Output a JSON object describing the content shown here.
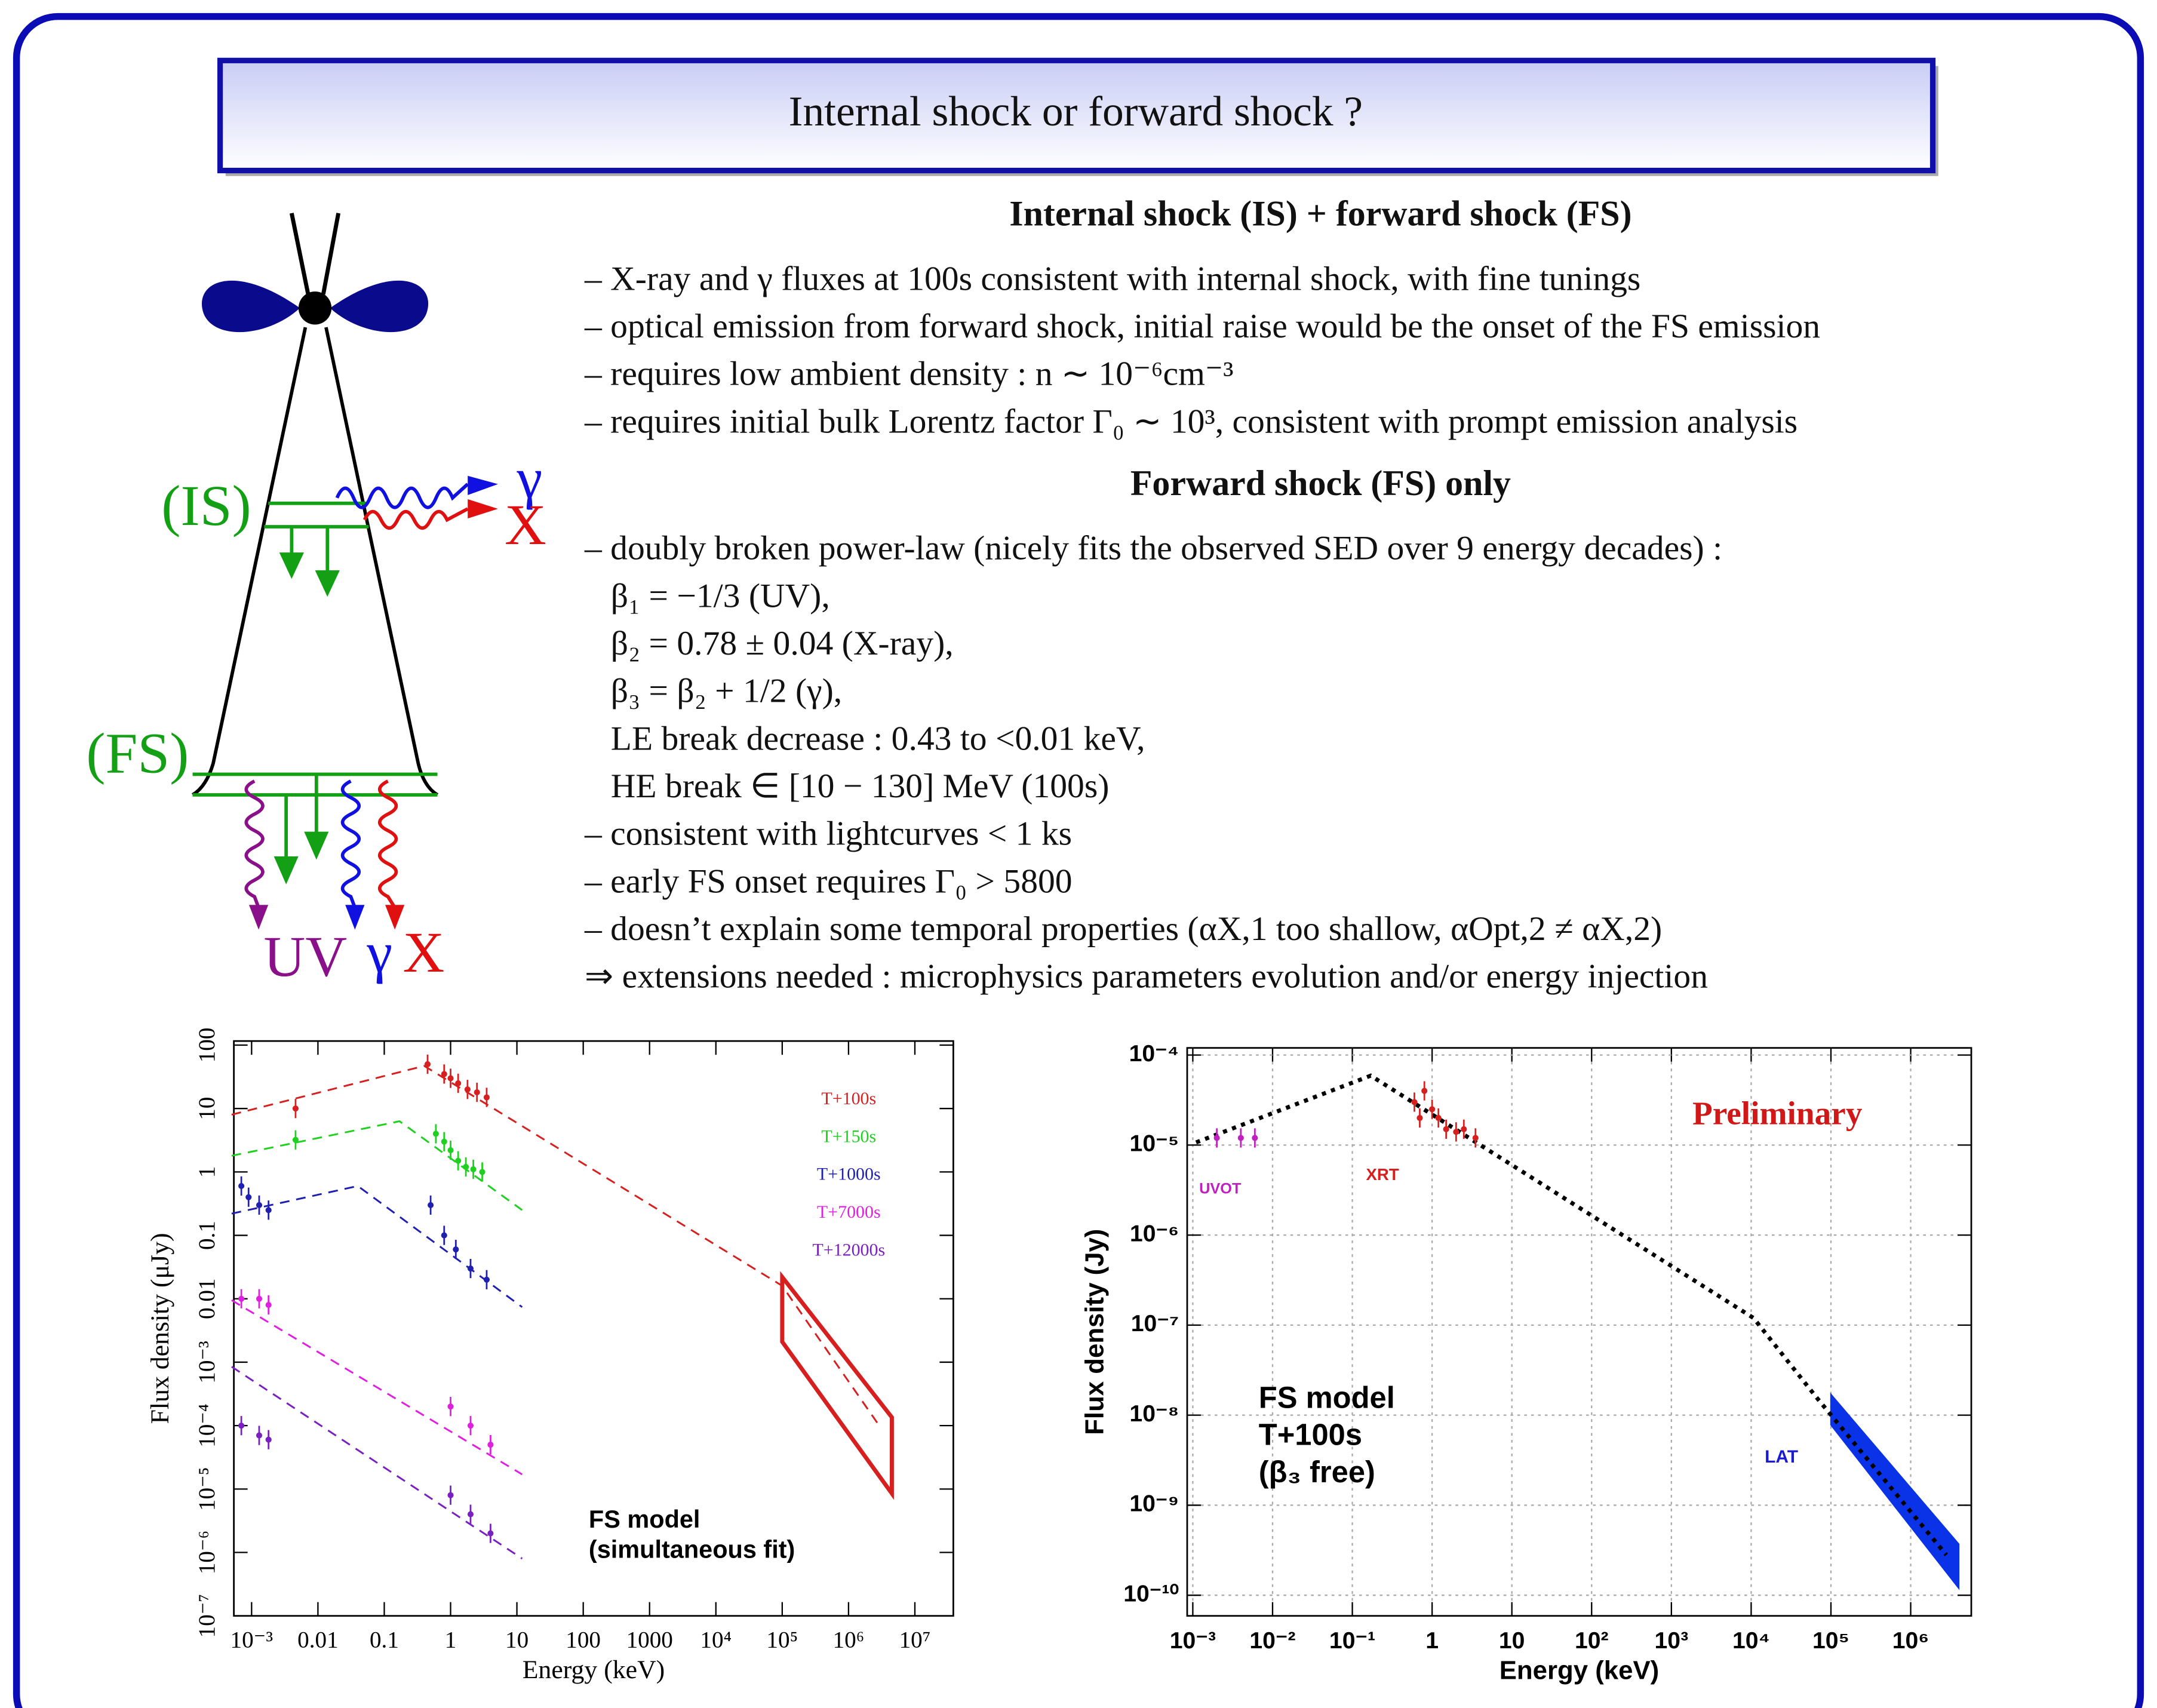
{
  "header": {
    "title": "Internal shock or forward shock ?"
  },
  "diagram": {
    "labels": [
      {
        "text": "(IS)",
        "color": "#14a014"
      },
      {
        "text": "γ",
        "color": "#1010e0"
      },
      {
        "text": "X",
        "color": "#e01010"
      },
      {
        "text": "(FS)",
        "color": "#14a014"
      },
      {
        "text": "UV",
        "color": "#8a108a"
      },
      {
        "text": "γ",
        "color": "#1010e0"
      },
      {
        "text": "X",
        "color": "#e01010"
      }
    ]
  },
  "sections": [
    {
      "heading": "Internal shock (IS) + forward shock (FS)",
      "items": [
        "– X-ray and γ fluxes at 100s consistent with internal shock, with fine tunings",
        "– optical emission from forward shock, initial raise would be the onset of the FS emission",
        "– requires low ambient density : n ∼ 10⁻⁶cm⁻³",
        "– requires initial bulk Lorentz factor Γ₀ ∼ 10³, consistent with prompt emission analysis"
      ]
    },
    {
      "heading": "Forward shock (FS) only",
      "items": [
        "– doubly broken power-law (nicely fits the observed SED over 9 energy decades) :",
        "β₁ = −1/3 (UV),",
        "β₂ = 0.78 ± 0.04 (X-ray),",
        "β₃ = β₂ + 1/2 (γ),",
        "LE break decrease : 0.43 to <0.01 keV,",
        "HE break ∈ [10 − 130] MeV (100s)",
        "– consistent with lightcurves < 1 ks",
        "– early FS onset requires Γ₀ > 5800",
        "– doesn’t explain some temporal properties (αX,1 too shallow, αOpt,2 ≠ αX,2)",
        "⇒ extensions needed : microphysics parameters evolution and/or energy injection"
      ]
    }
  ],
  "chart_data": [
    {
      "type": "line",
      "xlabel": "Energy (keV)",
      "ylabel": "Flux density (μJy)",
      "xscale": "log",
      "yscale": "log",
      "grid": false,
      "xlim": [
        0.00054,
        38000000
      ],
      "ylim": [
        1e-07,
        116
      ],
      "xticks": [
        {
          "value": 0.001,
          "label": "10⁻³"
        },
        0.01,
        0.1,
        1,
        10,
        100,
        1000,
        {
          "value": 10000,
          "label": "10⁴"
        },
        {
          "value": 100000,
          "label": "10⁵"
        },
        {
          "value": 1000000,
          "label": "10⁶"
        },
        {
          "value": 10000000,
          "label": "10⁷"
        }
      ],
      "yticks": [
        {
          "value": 1e-07,
          "label": "10⁻⁷"
        },
        {
          "value": 1e-06,
          "label": "10⁻⁶"
        },
        {
          "value": 1e-05,
          "label": "10⁻⁵"
        },
        {
          "value": 0.0001,
          "label": "10⁻⁴"
        },
        {
          "value": 0.001,
          "label": "10⁻³"
        },
        0.01,
        0.1,
        1,
        10,
        100
      ],
      "series": [
        {
          "name": "T+100s",
          "color": "#d62020",
          "dash": "dashed",
          "x": [
            0.0005,
            0.4,
            100000,
            2900000
          ],
          "values": [
            8,
            47,
            0.016,
            0.0001
          ],
          "points": {
            "x": [
              0.0046,
              0.45,
              0.8,
              1.0,
              1.3,
              1.8,
              2.5,
              3.5
            ],
            "values": [
              10,
              50,
              35,
              30,
              25,
              20,
              18,
              15
            ]
          }
        },
        {
          "name": "T+150s",
          "color": "#20d020",
          "dash": "dashed",
          "x": [
            0.0005,
            0.17,
            12
          ],
          "values": [
            1.8,
            6.3,
            0.25
          ],
          "points": {
            "x": [
              0.0046,
              0.6,
              0.8,
              1.0,
              1.3,
              1.7,
              2.2,
              3.0
            ],
            "values": [
              3.2,
              4,
              3,
              2.2,
              1.5,
              1.2,
              1.1,
              1.0
            ]
          }
        },
        {
          "name": "T+1000s",
          "color": "#2020b0",
          "dash": "dashed",
          "x": [
            0.0005,
            0.04,
            12
          ],
          "values": [
            0.22,
            0.6,
            0.0074
          ],
          "points": {
            "x": [
              0.0007,
              0.0009,
              0.0013,
              0.0018,
              0.5,
              0.8,
              1.2,
              2,
              3.5
            ],
            "values": [
              0.6,
              0.4,
              0.3,
              0.25,
              0.3,
              0.1,
              0.06,
              0.03,
              0.02
            ]
          }
        },
        {
          "name": "T+7000s",
          "color": "#e020e0",
          "dash": "dashed",
          "x": [
            0.0005,
            12
          ],
          "values": [
            0.0095,
            1.7e-05
          ],
          "points": {
            "x": [
              0.0007,
              0.0013,
              0.0018,
              1.0,
              2.0,
              4.0
            ],
            "values": [
              0.01,
              0.01,
              0.008,
              0.0002,
              0.0001,
              5e-05
            ]
          }
        },
        {
          "name": "T+12000s",
          "color": "#7a20c0",
          "dash": "dashed",
          "x": [
            0.0005,
            12
          ],
          "values": [
            0.00085,
            8e-07
          ],
          "points": {
            "x": [
              0.0007,
              0.0013,
              0.0018,
              1.0,
              2.0,
              4.0
            ],
            "values": [
              0.0001,
              7e-05,
              6e-05,
              8e-06,
              4e-06,
              2e-06
            ]
          }
        }
      ],
      "band": {
        "color": "#d62020",
        "style": "outline",
        "x": [
          100000,
          4500000
        ],
        "upper": [
          0.022,
          0.000135
        ],
        "lower": [
          0.0021,
          8.5e-06
        ]
      },
      "annotations": [
        {
          "text": "FS model",
          "color": "#000000"
        },
        {
          "text": "(simultaneous fit)",
          "color": "#000000"
        }
      ]
    },
    {
      "type": "line",
      "xlabel": "Energy (keV)",
      "ylabel": "Flux density (Jy)",
      "xscale": "log",
      "yscale": "log",
      "grid": true,
      "xlim": [
        0.00085,
        5750000
      ],
      "ylim": [
        5.9e-11,
        0.00012
      ],
      "xticks": [
        {
          "value": 0.001,
          "label": "10⁻³"
        },
        {
          "value": 0.01,
          "label": "10⁻²"
        },
        {
          "value": 0.1,
          "label": "10⁻¹"
        },
        1,
        10,
        {
          "value": 100,
          "label": "10²"
        },
        {
          "value": 1000,
          "label": "10³"
        },
        {
          "value": 10000,
          "label": "10⁴"
        },
        {
          "value": 100000,
          "label": "10⁵"
        },
        {
          "value": 1000000,
          "label": "10⁶"
        }
      ],
      "yticks": [
        {
          "value": 1e-10,
          "label": "10⁻¹⁰"
        },
        {
          "value": 1e-09,
          "label": "10⁻⁹"
        },
        {
          "value": 1e-08,
          "label": "10⁻⁸"
        },
        {
          "value": 1e-07,
          "label": "10⁻⁷"
        },
        {
          "value": 1e-06,
          "label": "10⁻⁶"
        },
        {
          "value": 1e-05,
          "label": "10⁻⁵"
        },
        {
          "value": 0.0001,
          "label": "10⁻⁴"
        }
      ],
      "series": [
        {
          "color": "#000000",
          "dash": "dotted",
          "x": [
            0.0011,
            0.17,
            10700,
            65000,
            2800000
          ],
          "values": [
            1.07e-05,
            5.9e-05,
            1.2e-07,
            1.6e-08,
            2.8e-10
          ]
        },
        {
          "color": "#d62020",
          "points": {
            "x": [
              0.6,
              0.7,
              0.8,
              1.0,
              1.2,
              1.5,
              2,
              2.5,
              3.5
            ],
            "values": [
              3e-05,
              2e-05,
              4e-05,
              2.5e-05,
              2e-05,
              1.5e-05,
              1.4e-05,
              1.5e-05,
              1.2e-05
            ]
          }
        },
        {
          "color": "#c020c0",
          "points": {
            "x": [
              0.002,
              0.004,
              0.006
            ],
            "values": [
              1.2e-05,
              1.2e-05,
              1.2e-05
            ]
          }
        }
      ],
      "band": {
        "color": "#0a32e6",
        "style": "filled",
        "x": [
          100000,
          4000000
        ],
        "upper": [
          1.7e-08,
          3.7e-10
        ],
        "lower": [
          7.8e-09,
          1.2e-10
        ]
      },
      "annotations": [
        {
          "text": "UVOT",
          "color": "#c020c0"
        },
        {
          "text": "XRT",
          "color": "#d62020"
        },
        {
          "text": "LAT",
          "color": "#1a1ad0"
        },
        {
          "text": "Preliminary",
          "color": "#d01818"
        },
        {
          "text": "FS model",
          "color": "#000000"
        },
        {
          "text": "T+100s",
          "color": "#000000"
        },
        {
          "text": "(β₃ free)",
          "color": "#000000"
        }
      ]
    }
  ]
}
